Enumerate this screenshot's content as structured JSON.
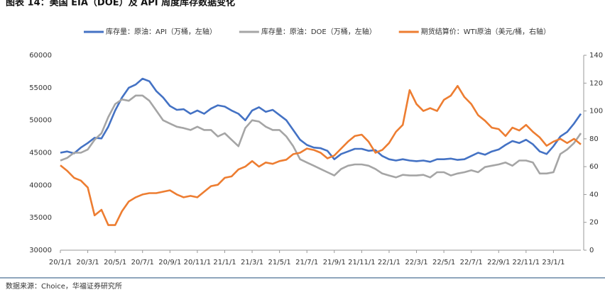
{
  "chart_data": {
    "type": "line",
    "title": "图表 14：美国 EIA（DOE）及 API 周度库存数据变化",
    "source": "数据来源：Choice，华福证券研究所",
    "categories": [
      "20/1/1",
      null,
      null,
      null,
      "20/3/1",
      null,
      null,
      null,
      "20/5/1",
      null,
      null,
      null,
      "20/7/1",
      null,
      null,
      null,
      "20/9/1",
      null,
      null,
      null,
      "20/11/1",
      null,
      null,
      null,
      "21/1/1",
      null,
      null,
      null,
      "21/3/1",
      null,
      null,
      null,
      "21/5/1",
      null,
      null,
      null,
      "21/7/1",
      null,
      null,
      null,
      "21/9/1",
      null,
      null,
      null,
      "21/11/1",
      null,
      null,
      null,
      "22/1/1",
      null,
      null,
      null,
      "22/3/1",
      null,
      null,
      null,
      "22/5/1",
      null,
      null,
      null,
      "22/7/1",
      null,
      null,
      null,
      "22/9/1",
      null,
      null,
      null,
      "22/11/1",
      null,
      null,
      null,
      "23/1/1",
      null,
      null,
      null,
      null
    ],
    "series": [
      {
        "name": "库存量：原油：API（万桶，左轴）",
        "color": "#4472c4",
        "axis": "y",
        "values": [
          45000,
          45200,
          44900,
          45800,
          46500,
          47300,
          47200,
          49000,
          51500,
          53500,
          55000,
          55500,
          56400,
          56000,
          54500,
          53500,
          52200,
          51600,
          51700,
          51000,
          51500,
          51000,
          51800,
          52300,
          52100,
          51500,
          51000,
          50000,
          51500,
          52000,
          51300,
          51600,
          50800,
          50000,
          48500,
          47000,
          46200,
          45800,
          45700,
          45300,
          44000,
          44800,
          45200,
          45600,
          45600,
          45300,
          45400,
          44500,
          44000,
          43800,
          44000,
          43800,
          43700,
          43800,
          43600,
          44000,
          44000,
          44100,
          43900,
          44000,
          44500,
          45000,
          44700,
          45200,
          45500,
          46200,
          46800,
          46500,
          47000,
          46300,
          45200,
          44800,
          46000,
          47500,
          48200,
          49500,
          51000
        ]
      },
      {
        "name": "库存量：原油：DOE（万桶，左轴）",
        "color": "#a5a5a5",
        "axis": "y",
        "values": [
          43800,
          44200,
          45000,
          45000,
          45500,
          47000,
          48000,
          50500,
          52500,
          53200,
          53000,
          53800,
          53800,
          53000,
          51500,
          50000,
          49500,
          49000,
          48800,
          48500,
          49000,
          48500,
          48500,
          47500,
          48000,
          47000,
          46000,
          48800,
          50000,
          49800,
          49000,
          48500,
          48500,
          47500,
          46000,
          44000,
          43500,
          43000,
          42500,
          42000,
          41500,
          42500,
          43000,
          43200,
          43200,
          43000,
          42500,
          41800,
          41500,
          41200,
          41600,
          41500,
          41500,
          41600,
          41200,
          42000,
          42000,
          41500,
          41800,
          42000,
          42300,
          42000,
          42800,
          43000,
          43200,
          43500,
          43000,
          43800,
          43800,
          43500,
          41800,
          41800,
          42000,
          44800,
          45500,
          46500,
          48000
        ]
      },
      {
        "name": "期货结算价：WTI原油（美元/桶，右轴）",
        "color": "#ed7d31",
        "axis": "y2",
        "values": [
          61,
          57,
          52,
          50,
          45,
          25,
          29,
          18,
          18,
          28,
          35,
          38,
          40,
          41,
          41,
          42,
          43,
          40,
          38,
          39,
          38,
          42,
          46,
          47,
          52,
          53,
          58,
          60,
          64,
          60,
          63,
          62,
          64,
          65,
          69,
          70,
          73,
          72,
          70,
          66,
          68,
          73,
          78,
          82,
          83,
          78,
          70,
          72,
          77,
          85,
          90,
          115,
          105,
          100,
          102,
          100,
          108,
          111,
          118,
          110,
          105,
          97,
          93,
          88,
          87,
          82,
          88,
          86,
          90,
          85,
          81,
          75,
          78,
          80,
          77,
          80,
          76
        ]
      }
    ],
    "ylim": [
      30000,
      60000
    ],
    "yticks": [
      30000,
      35000,
      40000,
      45000,
      50000,
      55000,
      60000
    ],
    "y2lim": [
      0,
      140
    ],
    "y2ticks": [
      0,
      20,
      40,
      60,
      80,
      100,
      120,
      140
    ],
    "legend": "top"
  }
}
